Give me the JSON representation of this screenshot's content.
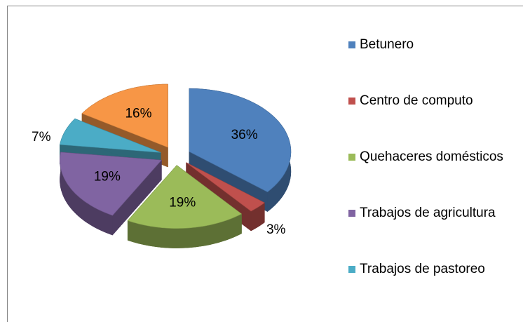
{
  "chart_data": {
    "type": "pie",
    "categories": [
      "Betunero",
      "Centro de computo",
      "Quehaceres domésticos",
      "Trabajos de agricultura",
      "Trabajos de pastoreo",
      null
    ],
    "values": [
      36,
      3,
      19,
      19,
      7,
      16
    ],
    "value_labels": [
      "36%",
      "3%",
      "19%",
      "19%",
      "7%",
      "16%"
    ],
    "colors": [
      "#4f81bd",
      "#c0504d",
      "#9bbb59",
      "#8064a2",
      "#4bacc6",
      "#f79646"
    ],
    "legend": "right"
  }
}
